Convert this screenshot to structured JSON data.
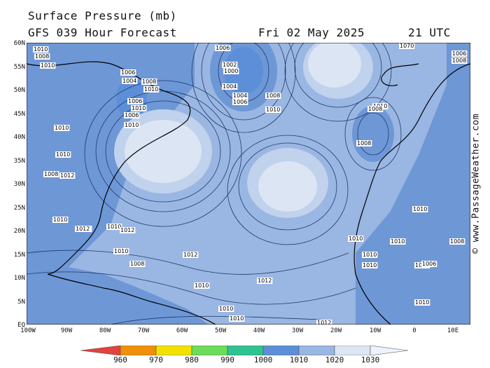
{
  "header": {
    "title": "Surface Pressure (mb)",
    "forecast": "GFS 039 Hour Forecast",
    "date": "Fri 02 May 2025",
    "time": "21 UTC"
  },
  "credit": "© www.PassageWeather.com",
  "map": {
    "lat_labels": [
      "60N",
      "55N",
      "50N",
      "45N",
      "40N",
      "35N",
      "30N",
      "25N",
      "20N",
      "15N",
      "10N",
      "5N",
      "EQ"
    ],
    "lon_labels": [
      "100W",
      "90W",
      "80W",
      "70W",
      "60W",
      "50W",
      "40W",
      "30W",
      "20W",
      "10W",
      "0",
      "10E"
    ],
    "isobar_labels": [
      "1010",
      "1008",
      "1010",
      "1006",
      "1004",
      "1008",
      "1010",
      "1006",
      "1010",
      "1006",
      "1010",
      "1010",
      "1008",
      "1010",
      "1012",
      "1006",
      "1002",
      "1000",
      "1004",
      "1004",
      "1006",
      "1008",
      "1010",
      "1010",
      "1008",
      "1008",
      "1010",
      "1012",
      "1010",
      "1010",
      "1012",
      "1012",
      "1010",
      "1012",
      "1010",
      "1010",
      "1008",
      "1010",
      "1010",
      "1010",
      "1010",
      "1010",
      "1012",
      "1012",
      "1008",
      "1010",
      "1006",
      "1010",
      "1070",
      "1006",
      "1008"
    ]
  },
  "colorbar": {
    "labels": [
      "960",
      "970",
      "980",
      "990",
      "1000",
      "1010",
      "1020",
      "1030"
    ],
    "colors": [
      "#e8403c",
      "#f0900a",
      "#f2e200",
      "#6ddc5a",
      "#2fc48f",
      "#5d8fd8",
      "#9ab6e2",
      "#dbe5f4"
    ]
  }
}
